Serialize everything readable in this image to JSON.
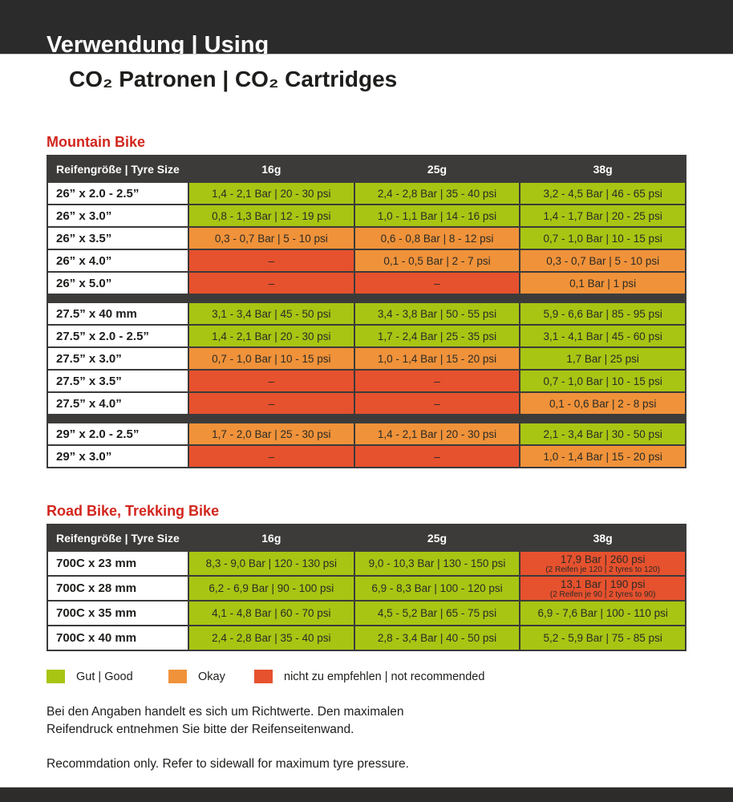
{
  "header": {
    "banner_title": "Verwendung | Using",
    "main_title": "CO₂ Patronen | CO₂ Cartridges"
  },
  "colors": {
    "good": "#a8c513",
    "okay": "#f0923a",
    "bad": "#e6512e",
    "table_header": "#3c3b3a",
    "section_title_red": "#d2261e",
    "banner": "#2b2b2b"
  },
  "tables": [
    {
      "title": "Mountain Bike",
      "columns": [
        "Reifengröße | Tyre Size",
        "16g",
        "25g",
        "38g"
      ],
      "groups": [
        {
          "rows": [
            {
              "label": "26” x 2.0 - 2.5”",
              "cells": [
                {
                  "text": "1,4 - 2,1 Bar | 20 - 30 psi",
                  "status": "good"
                },
                {
                  "text": "2,4 - 2,8 Bar | 35 - 40 psi",
                  "status": "good"
                },
                {
                  "text": "3,2 - 4,5 Bar | 46 - 65 psi",
                  "status": "good"
                }
              ]
            },
            {
              "label": "26” x 3.0”",
              "cells": [
                {
                  "text": "0,8 - 1,3 Bar | 12 - 19 psi",
                  "status": "good"
                },
                {
                  "text": "1,0 - 1,1 Bar | 14 - 16 psi",
                  "status": "good"
                },
                {
                  "text": "1,4 - 1,7 Bar | 20 - 25 psi",
                  "status": "good"
                }
              ]
            },
            {
              "label": "26” x 3.5”",
              "cells": [
                {
                  "text": "0,3 - 0,7 Bar | 5 - 10 psi",
                  "status": "okay"
                },
                {
                  "text": "0,6 - 0,8 Bar | 8 - 12 psi",
                  "status": "okay"
                },
                {
                  "text": "0,7 - 1,0 Bar | 10 - 15 psi",
                  "status": "good"
                }
              ]
            },
            {
              "label": "26” x 4.0”",
              "cells": [
                {
                  "text": "–",
                  "status": "bad"
                },
                {
                  "text": "0,1 - 0,5 Bar | 2 - 7 psi",
                  "status": "okay"
                },
                {
                  "text": "0,3 - 0,7 Bar | 5 - 10 psi",
                  "status": "okay"
                }
              ]
            },
            {
              "label": "26” x 5.0”",
              "cells": [
                {
                  "text": "–",
                  "status": "bad"
                },
                {
                  "text": "–",
                  "status": "bad"
                },
                {
                  "text": "0,1 Bar | 1 psi",
                  "status": "okay"
                }
              ]
            }
          ]
        },
        {
          "rows": [
            {
              "label": "27.5” x 40 mm",
              "cells": [
                {
                  "text": "3,1 - 3,4 Bar | 45 - 50 psi",
                  "status": "good"
                },
                {
                  "text": "3,4 - 3,8 Bar | 50 - 55 psi",
                  "status": "good"
                },
                {
                  "text": "5,9 - 6,6 Bar | 85 - 95 psi",
                  "status": "good"
                }
              ]
            },
            {
              "label": "27.5” x 2.0 - 2.5”",
              "cells": [
                {
                  "text": "1,4 - 2,1 Bar | 20 - 30 psi",
                  "status": "good"
                },
                {
                  "text": "1,7 - 2,4 Bar | 25 - 35 psi",
                  "status": "good"
                },
                {
                  "text": "3,1 - 4,1 Bar | 45 - 60 psi",
                  "status": "good"
                }
              ]
            },
            {
              "label": "27.5” x 3.0”",
              "cells": [
                {
                  "text": "0,7 - 1,0 Bar | 10 - 15 psi",
                  "status": "okay"
                },
                {
                  "text": "1,0 - 1,4 Bar | 15 - 20 psi",
                  "status": "okay"
                },
                {
                  "text": "1,7 Bar | 25 psi",
                  "status": "good"
                }
              ]
            },
            {
              "label": "27.5” x 3.5”",
              "cells": [
                {
                  "text": "–",
                  "status": "bad"
                },
                {
                  "text": "–",
                  "status": "bad"
                },
                {
                  "text": "0,7 - 1,0 Bar | 10 - 15 psi",
                  "status": "good"
                }
              ]
            },
            {
              "label": "27.5” x 4.0”",
              "cells": [
                {
                  "text": "–",
                  "status": "bad"
                },
                {
                  "text": "–",
                  "status": "bad"
                },
                {
                  "text": "0,1 - 0,6 Bar | 2 - 8 psi",
                  "status": "okay"
                }
              ]
            }
          ]
        },
        {
          "rows": [
            {
              "label": "29” x 2.0 - 2.5”",
              "cells": [
                {
                  "text": "1,7 - 2,0 Bar | 25 - 30 psi",
                  "status": "okay"
                },
                {
                  "text": "1,4 - 2,1 Bar | 20 - 30 psi",
                  "status": "okay"
                },
                {
                  "text": "2,1 - 3,4 Bar | 30 - 50 psi",
                  "status": "good"
                }
              ]
            },
            {
              "label": "29” x 3.0”",
              "cells": [
                {
                  "text": "–",
                  "status": "bad"
                },
                {
                  "text": "–",
                  "status": "bad"
                },
                {
                  "text": "1,0 - 1,4 Bar | 15 - 20 psi",
                  "status": "okay"
                }
              ]
            }
          ]
        }
      ]
    },
    {
      "title": "Road Bike, Trekking Bike",
      "columns": [
        "Reifengröße | Tyre Size",
        "16g",
        "25g",
        "38g"
      ],
      "groups": [
        {
          "rows": [
            {
              "label": "700C x 23 mm",
              "cells": [
                {
                  "text": "8,3 - 9,0 Bar | 120 - 130 psi",
                  "status": "good"
                },
                {
                  "text": "9,0 - 10,3 Bar | 130 - 150 psi",
                  "status": "good"
                },
                {
                  "text": "17,9 Bar | 260 psi",
                  "sub": "(2 Reifen je 120 | 2 tyres to 120)",
                  "status": "bad"
                }
              ]
            },
            {
              "label": "700C x 28 mm",
              "cells": [
                {
                  "text": "6,2 - 6,9 Bar | 90 - 100 psi",
                  "status": "good"
                },
                {
                  "text": "6,9 - 8,3 Bar | 100 - 120 psi",
                  "status": "good"
                },
                {
                  "text": "13,1 Bar | 190 psi",
                  "sub": "(2 Reifen je 90 | 2 tyres to 90)",
                  "status": "bad"
                }
              ]
            },
            {
              "label": "700C x 35 mm",
              "cells": [
                {
                  "text": "4,1 - 4,8 Bar | 60 - 70 psi",
                  "status": "good"
                },
                {
                  "text": "4,5 - 5,2 Bar | 65 - 75 psi",
                  "status": "good"
                },
                {
                  "text": "6,9 - 7,6 Bar | 100 - 110 psi",
                  "status": "good"
                }
              ]
            },
            {
              "label": "700C x 40 mm",
              "cells": [
                {
                  "text": "2,4 - 2,8 Bar | 35 - 40 psi",
                  "status": "good"
                },
                {
                  "text": "2,8 - 3,4 Bar | 40 - 50 psi",
                  "status": "good"
                },
                {
                  "text": "5,2 - 5,9 Bar | 75 - 85 psi",
                  "status": "good"
                }
              ]
            }
          ]
        }
      ]
    }
  ],
  "legend": [
    {
      "label": "Gut | Good",
      "status": "good"
    },
    {
      "label": "Okay",
      "status": "okay"
    },
    {
      "label": "nicht zu empfehlen | not recommended",
      "status": "bad"
    }
  ],
  "notes": [
    {
      "lines": [
        "Bei den Angaben handelt es sich um Richtwerte. Den maximalen",
        "Reifendruck entnehmen Sie bitte der Reifenseitenwand."
      ]
    },
    {
      "lines": [
        "Recommdation only. Refer to sidewall for maximum tyre pressure."
      ]
    }
  ]
}
